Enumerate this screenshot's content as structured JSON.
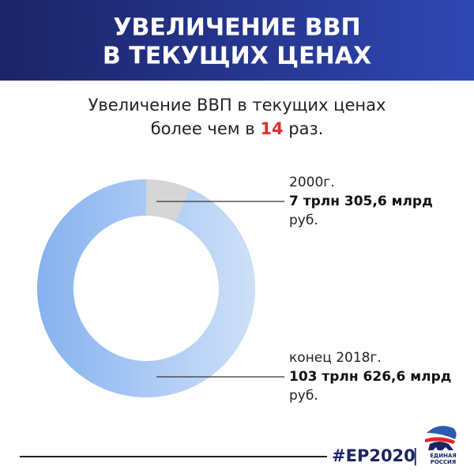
{
  "chart_data": {
    "type": "donut",
    "title": [
      "УВЕЛИЧЕНИЕ ВВП",
      "В ТЕКУЩИХ ЦЕНАХ"
    ],
    "subtitle": {
      "line1": "Увеличение ВВП в текущих ценах",
      "before": "более чем в",
      "ratio": 14,
      "after": "раз."
    },
    "categories": [
      "2000г.",
      "конец 2018г."
    ],
    "values": [
      7305.6,
      103626.6
    ],
    "value_labels": [
      "7 трлн 305,6 млрд",
      "103 трлн 626,6 млрд"
    ],
    "unit": "руб.",
    "colors": [
      "#d6d6d6",
      "#86b2ef"
    ]
  },
  "footer": {
    "hashtag": "#ЕР2020",
    "separator": "|",
    "logo": [
      "ЕДИНАЯ",
      "РОССИЯ"
    ]
  }
}
